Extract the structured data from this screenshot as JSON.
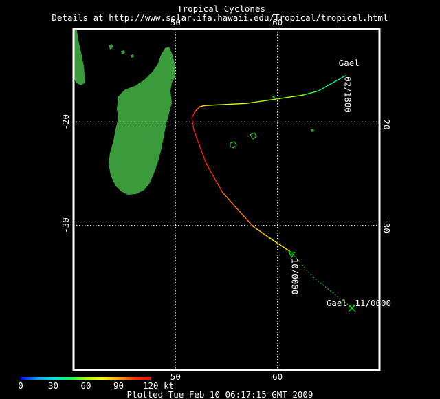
{
  "header": {
    "title": "Tropical Cyclones",
    "subtitle": "Details at http://www.solar.ifa.hawaii.edu/Tropical/tropical.html"
  },
  "map": {
    "lon_range": [
      40,
      70
    ],
    "lat_range": [
      -11,
      -44
    ],
    "lon_ticks": [
      {
        "value": 50,
        "label": "50"
      },
      {
        "value": 60,
        "label": "60"
      }
    ],
    "lat_ticks": [
      {
        "value": -20,
        "label": "-20"
      },
      {
        "value": -30,
        "label": "-30"
      }
    ],
    "gridlines": true,
    "colors": {
      "land": "#3a9b3a",
      "island_outline": "#2fb52f",
      "frame": "#ffffff",
      "grid": "#ffffff"
    }
  },
  "storm": {
    "name": "Gael",
    "track": [
      {
        "lon": 66.7,
        "lat": -15.5,
        "kt": 35
      },
      {
        "lon": 64.0,
        "lat": -17.0,
        "kt": 45
      },
      {
        "lon": 62.5,
        "lat": -17.4,
        "kt": 55
      },
      {
        "lon": 57.0,
        "lat": -18.2,
        "kt": 65
      },
      {
        "lon": 53.0,
        "lat": -18.4,
        "kt": 75
      },
      {
        "lon": 52.4,
        "lat": -18.5,
        "kt": 90
      },
      {
        "lon": 51.9,
        "lat": -19.0,
        "kt": 110
      },
      {
        "lon": 51.6,
        "lat": -19.6,
        "kt": 115
      },
      {
        "lon": 51.8,
        "lat": -20.8,
        "kt": 115
      },
      {
        "lon": 53.0,
        "lat": -24.0,
        "kt": 110
      },
      {
        "lon": 54.6,
        "lat": -26.8,
        "kt": 100
      },
      {
        "lon": 57.6,
        "lat": -30.1,
        "kt": 90
      },
      {
        "lon": 59.2,
        "lat": -31.2,
        "kt": 80
      },
      {
        "lon": 61.2,
        "lat": -32.5,
        "kt": 70
      }
    ],
    "forecast": [
      {
        "lon": 61.2,
        "lat": -32.5
      },
      {
        "lon": 63.5,
        "lat": -35.0
      },
      {
        "lon": 67.3,
        "lat": -38.0
      }
    ],
    "markers": [
      {
        "lon": 67.3,
        "lat": -38.0,
        "symbol": "x"
      },
      {
        "lon": 61.4,
        "lat": -32.8,
        "symbol": "triangle"
      }
    ],
    "labels": [
      {
        "text": "Gael",
        "lon": 66.0,
        "lat": -14.6,
        "rotate": 0
      },
      {
        "text": "02/1800",
        "lon": 66.6,
        "lat": -15.6,
        "rotate": 90
      },
      {
        "text": "10/0000",
        "lon": 61.4,
        "lat": -33.2,
        "rotate": 90
      },
      {
        "text": "Gael",
        "lon": 64.8,
        "lat": -37.8,
        "rotate": 0
      },
      {
        "text": "11/0000",
        "lon": 67.6,
        "lat": -37.8,
        "rotate": 0
      }
    ]
  },
  "legend": {
    "min_label": "0",
    "tick_labels": [
      "0",
      "30",
      "60",
      "90",
      "120 kt"
    ],
    "max_value": 120,
    "stops": [
      "#0000ff",
      "#00a0ff",
      "#00e0e0",
      "#00ff60",
      "#a0ff00",
      "#ffff00",
      "#ffa000",
      "#ff3000",
      "#ff0000"
    ]
  },
  "footer": {
    "plotted": "Plotted Tue Feb 10 06:17:15 GMT 2009"
  }
}
